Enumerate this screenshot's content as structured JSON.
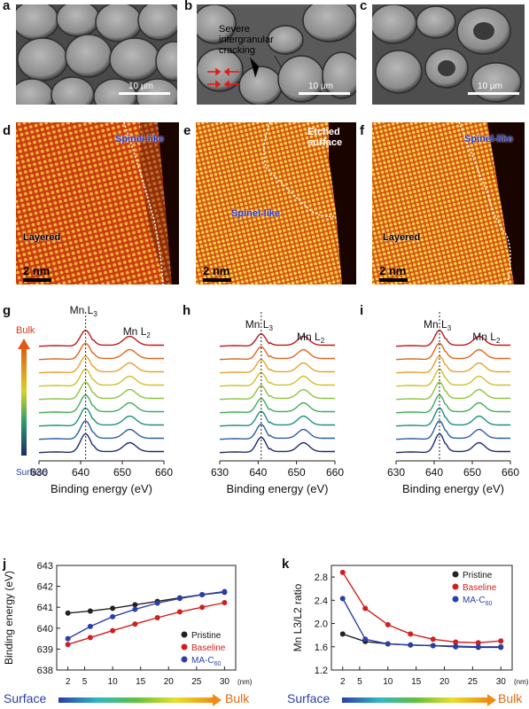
{
  "panels": {
    "a": {
      "label": "a",
      "scale": "10 µm"
    },
    "b": {
      "label": "b",
      "scale": "10 µm",
      "annotation_lines": [
        "Severe",
        "intergranular",
        "cracking"
      ]
    },
    "c": {
      "label": "c",
      "scale": "10 µm"
    },
    "d": {
      "label": "d",
      "scale": "2 nm",
      "label_top": "Spinel-like",
      "label_bottom": "Layered"
    },
    "e": {
      "label": "e",
      "scale": "2 nm",
      "label_top_lines": [
        "Etched",
        "surface"
      ],
      "label_mid": "Spinel-like"
    },
    "f": {
      "label": "f",
      "scale": "2 nm",
      "label_top": "Spinel-like",
      "label_bottom": "Layered"
    }
  },
  "eels": {
    "g": {
      "label": "g"
    },
    "h": {
      "label": "h"
    },
    "i": {
      "label": "i"
    },
    "peak_L3": "Mn L",
    "peak_L3_sub": "3",
    "peak_L2": "Mn L",
    "peak_L2_sub": "2",
    "bulk": "Bulk",
    "surface": "Surface",
    "xlabel": "Binding energy (eV)",
    "xticks": [
      "630",
      "640",
      "650",
      "660"
    ],
    "line_colors": [
      "#c0161c",
      "#e0661e",
      "#e6a22a",
      "#c9c22c",
      "#8ec43c",
      "#3fae52",
      "#1e8f7a",
      "#2a5fa0",
      "#1f2a6e"
    ]
  },
  "chart_data": [
    {
      "type": "line",
      "panel": "j",
      "ylabel": "Binding energy (eV)",
      "xunit": "(nm)",
      "x": [
        2,
        6,
        10,
        14,
        18,
        22,
        26,
        30
      ],
      "xticks": [
        "2",
        "5",
        "10",
        "15",
        "20",
        "25",
        "30"
      ],
      "yticks": [
        "638",
        "639",
        "640",
        "641",
        "642",
        "643"
      ],
      "ylim": [
        638,
        643
      ],
      "legend_placement": "bottom-right",
      "series": [
        {
          "name": "Pristine",
          "color": "#222222",
          "values": [
            640.72,
            640.82,
            640.95,
            641.12,
            641.28,
            641.45,
            641.6,
            641.72
          ]
        },
        {
          "name": "Baseline",
          "color": "#d11f1f",
          "values": [
            639.22,
            639.55,
            639.88,
            640.2,
            640.5,
            640.78,
            641.0,
            641.22
          ]
        },
        {
          "name": "MA-C60",
          "color": "#2a3fa8",
          "values": [
            639.5,
            640.08,
            640.55,
            640.9,
            641.2,
            641.42,
            641.6,
            641.75
          ]
        }
      ]
    },
    {
      "type": "line",
      "panel": "k",
      "ylabel": "Mn L3/L2 ratio",
      "xunit": "(nm)",
      "x": [
        2,
        6,
        10,
        14,
        18,
        22,
        26,
        30
      ],
      "xticks": [
        "2",
        "5",
        "10",
        "15",
        "20",
        "25",
        "30"
      ],
      "yticks": [
        "1.2",
        "1.6",
        "2.0",
        "2.4",
        "2.8"
      ],
      "ylim": [
        1.2,
        3.0
      ],
      "legend_placement": "top-right",
      "series": [
        {
          "name": "Pristine",
          "color": "#222222",
          "values": [
            1.82,
            1.69,
            1.65,
            1.63,
            1.62,
            1.6,
            1.59,
            1.59
          ]
        },
        {
          "name": "Baseline",
          "color": "#d11f1f",
          "values": [
            2.88,
            2.26,
            1.98,
            1.82,
            1.73,
            1.68,
            1.67,
            1.7
          ]
        },
        {
          "name": "MA-C60",
          "color": "#2a3fa8",
          "values": [
            2.43,
            1.73,
            1.65,
            1.63,
            1.62,
            1.61,
            1.6,
            1.6
          ]
        }
      ]
    }
  ],
  "bottom_bars": {
    "j_panel_label": "j",
    "k_panel_label": "k",
    "surface": "Surface",
    "bulk": "Bulk"
  }
}
